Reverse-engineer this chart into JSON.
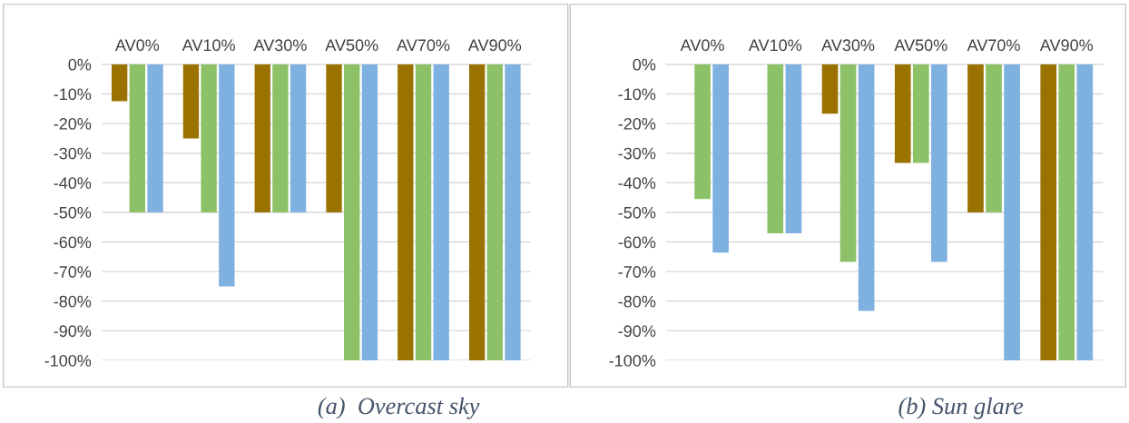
{
  "chart_data": [
    {
      "type": "bar",
      "categories": [
        "AV0%",
        "AV10%",
        "AV30%",
        "AV50%",
        "AV70%",
        "AV90%"
      ],
      "series": [
        {
          "color": "#9a7200",
          "values": [
            -12.5,
            -25,
            -50,
            -50,
            -100,
            -100
          ]
        },
        {
          "color": "#8cc168",
          "values": [
            -50,
            -50,
            -50,
            -100,
            -100,
            -100
          ]
        },
        {
          "color": "#7eb0e0",
          "values": [
            -50,
            -75,
            -50,
            -100,
            -100,
            -100
          ]
        }
      ],
      "ylim": [
        -100,
        0
      ],
      "yticks": [
        {
          "value": 0,
          "label": "0%"
        },
        {
          "value": -10,
          "label": "-10%"
        },
        {
          "value": -20,
          "label": "-20%"
        },
        {
          "value": -30,
          "label": "-30%"
        },
        {
          "value": -40,
          "label": "-40%"
        },
        {
          "value": -50,
          "label": "-50%"
        },
        {
          "value": -60,
          "label": "-60%"
        },
        {
          "value": -70,
          "label": "-70%"
        },
        {
          "value": -80,
          "label": "-80%"
        },
        {
          "value": -90,
          "label": "-90%"
        },
        {
          "value": -100,
          "label": "-100%"
        }
      ],
      "grid": "y",
      "legend": false,
      "annotations": [
        "(a)  Overcast sky"
      ]
    },
    {
      "type": "bar",
      "categories": [
        "AV0%",
        "AV10%",
        "AV30%",
        "AV50%",
        "AV70%",
        "AV90%"
      ],
      "series": [
        {
          "color": "#9a7200",
          "values": [
            0,
            0,
            -16.7,
            -33.3,
            -50,
            -100
          ]
        },
        {
          "color": "#8cc168",
          "values": [
            -45.5,
            -57.1,
            -66.7,
            -33.3,
            -50,
            -100
          ]
        },
        {
          "color": "#7eb0e0",
          "values": [
            -63.6,
            -57.1,
            -83.3,
            -66.7,
            -100,
            -100
          ]
        }
      ],
      "ylim": [
        -100,
        0
      ],
      "yticks": [
        {
          "value": 0,
          "label": "0%"
        },
        {
          "value": -10,
          "label": "-10%"
        },
        {
          "value": -20,
          "label": "-20%"
        },
        {
          "value": -30,
          "label": "-30%"
        },
        {
          "value": -40,
          "label": "-40%"
        },
        {
          "value": -50,
          "label": "-50%"
        },
        {
          "value": -60,
          "label": "-60%"
        },
        {
          "value": -70,
          "label": "-70%"
        },
        {
          "value": -80,
          "label": "-80%"
        },
        {
          "value": -90,
          "label": "-90%"
        },
        {
          "value": -100,
          "label": "-100%"
        }
      ],
      "grid": "y",
      "legend": false,
      "annotations": [
        "(b) Sun glare"
      ]
    }
  ]
}
